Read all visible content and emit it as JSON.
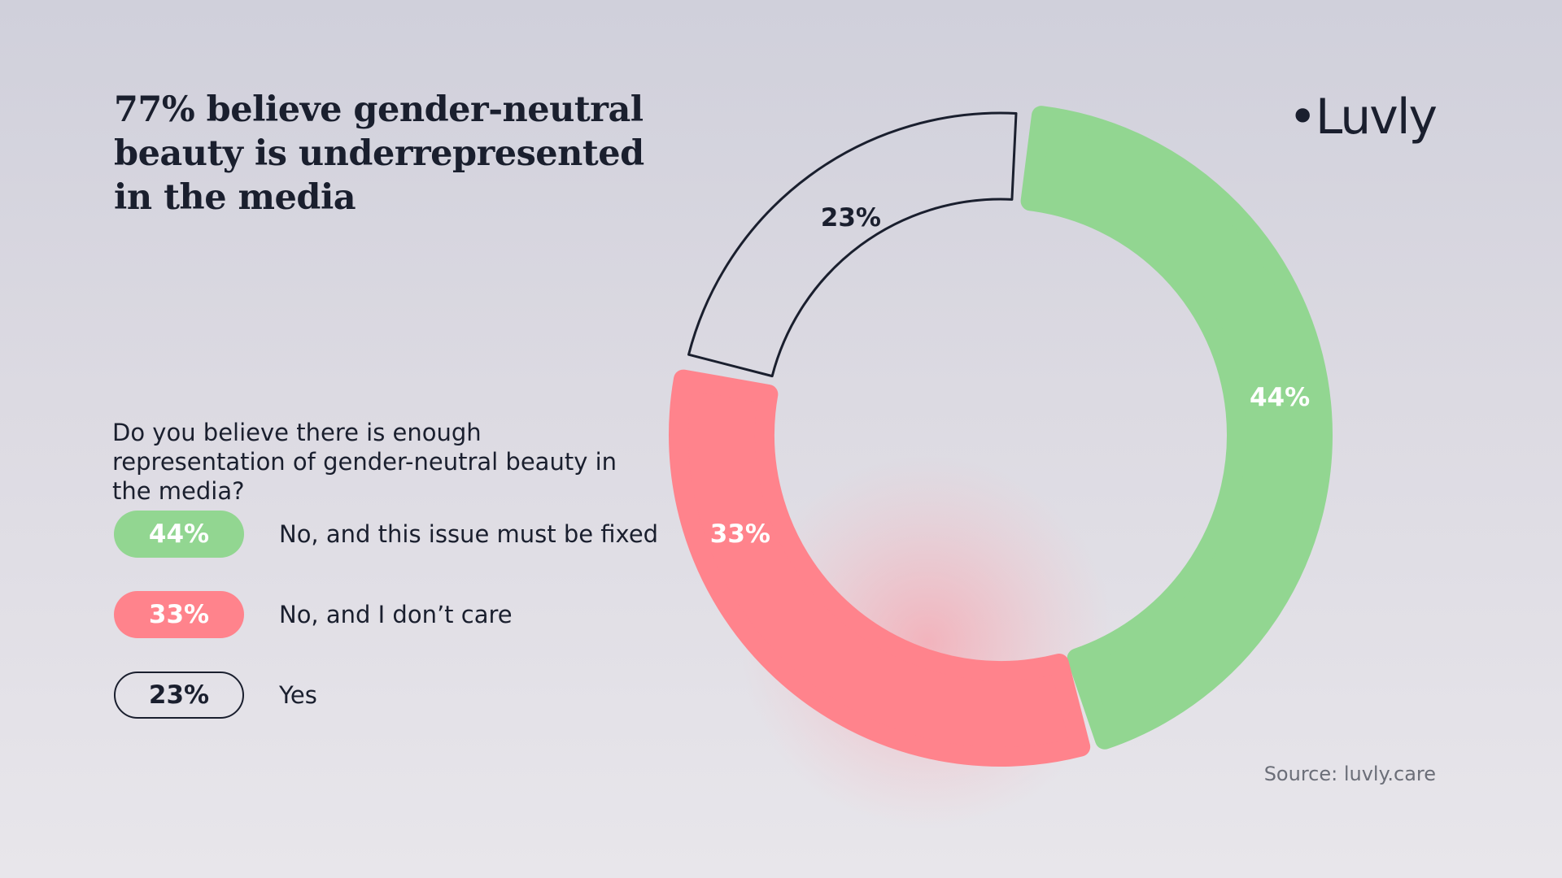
{
  "title": "77% believe gender-neutral beauty is underrepresented in the media",
  "logo": "•Luvly",
  "question": "Do you believe there is enough representation of gender-neutral beauty in the media?",
  "source": "Source: luvly.care",
  "colors": {
    "green": "#92d691",
    "red": "#ff838c",
    "outline": "#1a1f2e",
    "text": "#1a1f2e"
  },
  "chart_data": {
    "type": "pie",
    "style": "donut",
    "categories": [
      "No, and this issue must be fixed",
      "No, and I don’t care",
      "Yes"
    ],
    "values": [
      44,
      33,
      23
    ],
    "labels": [
      "44%",
      "33%",
      "23%"
    ],
    "colors": [
      "#92d691",
      "#ff838c",
      "outline"
    ],
    "title": "77% believe gender-neutral beauty is underrepresented in the media",
    "legend": "left"
  },
  "legend": [
    {
      "value": "44%",
      "label": "No, and this issue must be fixed"
    },
    {
      "value": "33%",
      "label": "No, and I don’t care"
    },
    {
      "value": "23%",
      "label": "Yes"
    }
  ]
}
